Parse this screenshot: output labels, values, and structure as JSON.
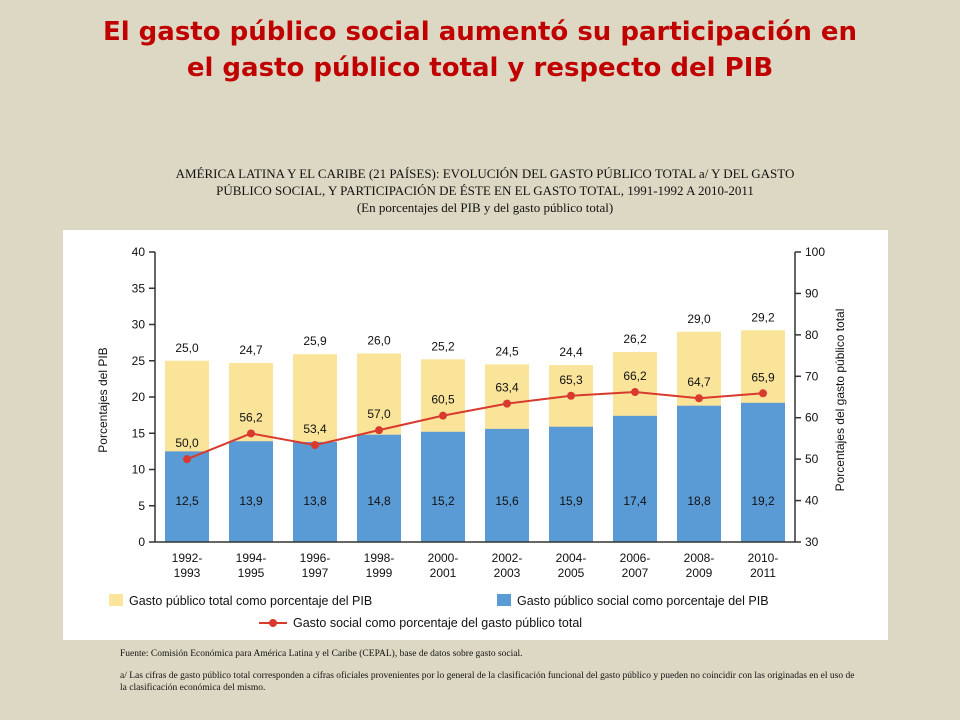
{
  "slide": {
    "title_line1": "El gasto público social aumentó su participación en",
    "title_line2": "el gasto público total y respecto del PIB"
  },
  "chart_heading": {
    "line1": "AMÉRICA LATINA Y EL CARIBE (21 PAÍSES): EVOLUCIÓN DEL GASTO PÚBLICO TOTAL a/ Y DEL GASTO",
    "line2": "PÚBLICO SOCIAL, Y PARTICIPACIÓN DE ÉSTE EN EL GASTO TOTAL, 1991-1992 A 2010-2011",
    "line3": "(En porcentajes del PIB y del gasto público total)"
  },
  "chart_data": {
    "type": "bar",
    "categories": [
      [
        "1992-",
        "1993"
      ],
      [
        "1994-",
        "1995"
      ],
      [
        "1996-",
        "1997"
      ],
      [
        "1998-",
        "1999"
      ],
      [
        "2000-",
        "2001"
      ],
      [
        "2002-",
        "2003"
      ],
      [
        "2004-",
        "2005"
      ],
      [
        "2006-",
        "2007"
      ],
      [
        "2008-",
        "2009"
      ],
      [
        "2010-",
        "2011"
      ]
    ],
    "series": [
      {
        "name": "Gasto público total como porcentaje del PIB",
        "axis": "left",
        "color": "#fae49a",
        "values": [
          25.0,
          24.7,
          25.9,
          26.0,
          25.2,
          24.5,
          24.4,
          26.2,
          29.0,
          29.2
        ],
        "labels": [
          "25,0",
          "24,7",
          "25,9",
          "26,0",
          "25,2",
          "24,5",
          "24,4",
          "26,2",
          "29,0",
          "29,2"
        ]
      },
      {
        "name": "Gasto público social como porcentaje del PIB",
        "axis": "left",
        "color": "#5b9bd5",
        "values": [
          12.5,
          13.9,
          13.8,
          14.8,
          15.2,
          15.6,
          15.9,
          17.4,
          18.8,
          19.2
        ],
        "labels": [
          "12,5",
          "13,9",
          "13,8",
          "14,8",
          "15,2",
          "15,6",
          "15,9",
          "17,4",
          "18,8",
          "19,2"
        ]
      },
      {
        "name": "Gasto social como porcentaje del gasto público total",
        "type": "line",
        "axis": "right",
        "color": "#d83a2e",
        "values": [
          50.0,
          56.2,
          53.4,
          57.0,
          60.5,
          63.4,
          65.3,
          66.2,
          64.7,
          65.9
        ],
        "labels": [
          "50,0",
          "56,2",
          "53,4",
          "57,0",
          "60,5",
          "63,4",
          "65,3",
          "66,2",
          "64,7",
          "65,9"
        ]
      }
    ],
    "ylabel": "Porcentajes del PIB",
    "y2label": "Porcentajes del gasto público total",
    "ylim": [
      0,
      40
    ],
    "y2lim": [
      30,
      100
    ],
    "yticks": [
      "0",
      "5",
      "10",
      "15",
      "20",
      "25",
      "30",
      "35",
      "40"
    ],
    "y2ticks": [
      "30",
      "40",
      "50",
      "60",
      "70",
      "80",
      "90",
      "100"
    ],
    "grid": false,
    "legend": "bottom"
  },
  "notes": {
    "source": "Fuente: Comisión Económica para América Latina y el Caribe (CEPAL), base de datos sobre gasto social.",
    "footnote": "a/ Las cifras de gasto público total corresponden a cifras oficiales provenientes por lo general de la clasificación funcional del gasto público y pueden no coincidir con las originadas en el uso de la clasificación económica del mismo."
  }
}
